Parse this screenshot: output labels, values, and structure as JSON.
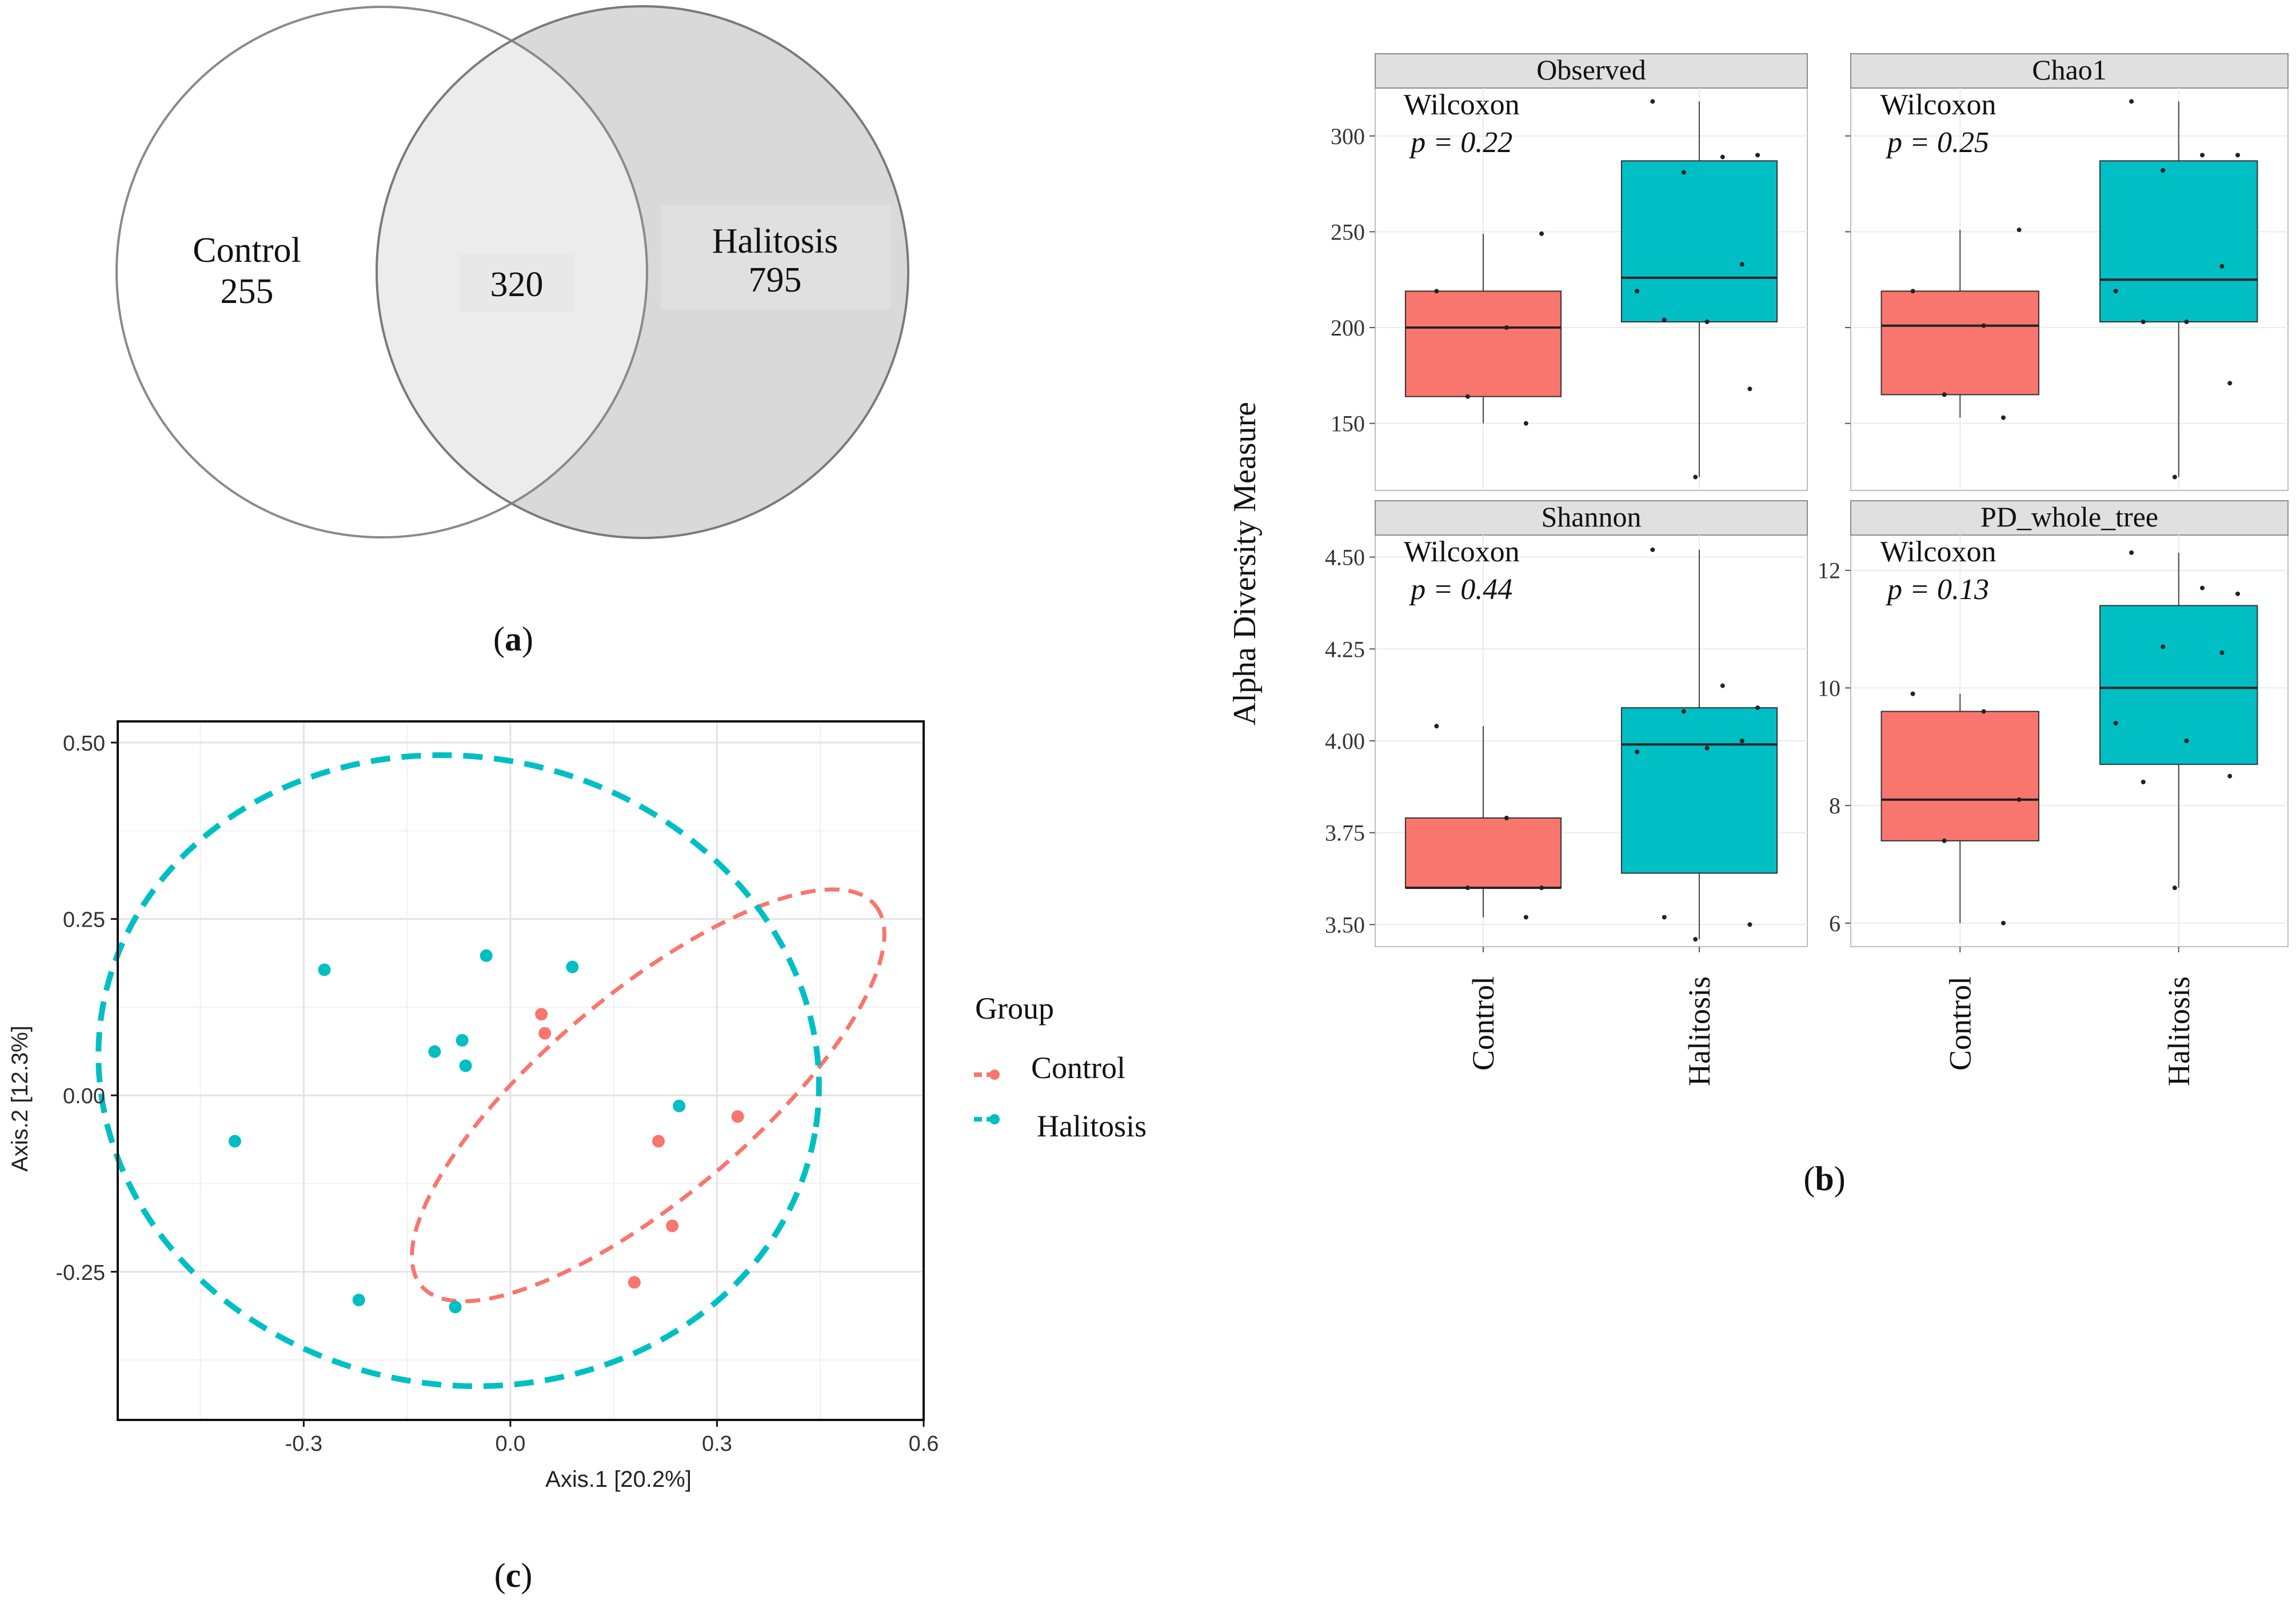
{
  "figure": {
    "panel_labels": [
      "(a)",
      "(b)",
      "(c)"
    ],
    "panel_letters": [
      "a",
      "b",
      "c"
    ]
  },
  "chart_data": [
    {
      "type": "venn",
      "panel": "a",
      "sets": [
        {
          "name": "Control",
          "unique": 255
        },
        {
          "name": "Halitosis",
          "unique": 795
        }
      ],
      "intersection": 320,
      "colors": {
        "control_fill": "#ffffff",
        "halitosis_fill": "#d9d9d9",
        "overlap_fill": "#ececec",
        "stroke": "#7f7f7f"
      }
    },
    {
      "type": "box",
      "panel": "b",
      "ylabel": "Alpha Diversity Measure",
      "groups": [
        "Control",
        "Halitosis"
      ],
      "colors": {
        "Control": "#f8766d",
        "Halitosis": "#00bfc4"
      },
      "facets": [
        {
          "name": "Observed",
          "ylim": [
            115,
            325
          ],
          "yticks": [
            150,
            200,
            250,
            300
          ],
          "test": "Wilcoxon",
          "p_label": "p = 0.22",
          "boxes": {
            "Control": {
              "min": 150,
              "q1": 164,
              "median": 200,
              "q3": 219,
              "max": 249
            },
            "Halitosis": {
              "min": 122,
              "q1": 203,
              "median": 226,
              "q3": 287,
              "max": 318
            }
          },
          "points": {
            "Control": [
              219,
              200,
              249,
              164,
              150
            ],
            "Halitosis": [
              318,
              289,
              290,
              281,
              233,
              219,
              203,
              204,
              168,
              122
            ]
          }
        },
        {
          "name": "Chao1",
          "ylim": [
            115,
            325
          ],
          "yticks": [
            150,
            200,
            250,
            300
          ],
          "test": "Wilcoxon",
          "p_label": "p = 0.25",
          "boxes": {
            "Control": {
              "min": 153,
              "q1": 165,
              "median": 201,
              "q3": 219,
              "max": 251
            },
            "Halitosis": {
              "min": 122,
              "q1": 203,
              "median": 225,
              "q3": 287,
              "max": 318
            }
          },
          "points": {
            "Control": [
              219,
              201,
              251,
              165,
              153
            ],
            "Halitosis": [
              318,
              290,
              290,
              282,
              232,
              219,
              203,
              203,
              171,
              122
            ]
          }
        },
        {
          "name": "Shannon",
          "ylim": [
            3.44,
            4.56
          ],
          "yticks": [
            3.5,
            3.75,
            4.0,
            4.25,
            4.5
          ],
          "test": "Wilcoxon",
          "p_label": "p = 0.44",
          "boxes": {
            "Control": {
              "min": 3.52,
              "q1": 3.6,
              "median": 3.6,
              "q3": 3.79,
              "max": 4.04
            },
            "Halitosis": {
              "min": 3.46,
              "q1": 3.64,
              "median": 3.99,
              "q3": 4.09,
              "max": 4.52
            }
          },
          "points": {
            "Control": [
              4.04,
              3.79,
              3.6,
              3.6,
              3.52
            ],
            "Halitosis": [
              4.52,
              4.15,
              4.09,
              4.08,
              4.0,
              3.97,
              3.98,
              3.52,
              3.5,
              3.46
            ]
          }
        },
        {
          "name": "PD_whole_tree",
          "ylim": [
            5.6,
            12.6
          ],
          "yticks": [
            6,
            8,
            10,
            12
          ],
          "test": "Wilcoxon",
          "p_label": "p = 0.13",
          "boxes": {
            "Control": {
              "min": 6.0,
              "q1": 7.4,
              "median": 8.1,
              "q3": 9.6,
              "max": 9.9
            },
            "Halitosis": {
              "min": 6.6,
              "q1": 8.7,
              "median": 10.0,
              "q3": 11.4,
              "max": 12.3
            }
          },
          "points": {
            "Control": [
              9.9,
              9.6,
              8.1,
              7.4,
              6.0
            ],
            "Halitosis": [
              12.3,
              11.7,
              11.6,
              10.7,
              10.6,
              9.4,
              9.1,
              8.4,
              8.5,
              6.6
            ]
          }
        }
      ]
    },
    {
      "type": "scatter",
      "panel": "c",
      "xlabel": "Axis.1   [20.2%]",
      "ylabel": "Axis.2   [12.3%]",
      "xlim": [
        -0.57,
        0.6
      ],
      "ylim": [
        -0.46,
        0.53
      ],
      "xticks": [
        -0.3,
        0.0,
        0.3,
        0.6
      ],
      "xtick_labels": [
        "-0.3",
        "0.0",
        "0.3",
        "0.6"
      ],
      "yticks": [
        -0.25,
        0.0,
        0.25,
        0.5
      ],
      "ytick_labels": [
        "-0.25",
        "0.00",
        "0.25",
        "0.50"
      ],
      "legend": {
        "title": "Group",
        "entries": [
          "Control",
          "Halitosis"
        ],
        "position": "right"
      },
      "series": [
        {
          "name": "Control",
          "color": "#f8766d",
          "points": [
            [
              0.045,
              0.115
            ],
            [
              0.05,
              0.088
            ],
            [
              0.215,
              -0.065
            ],
            [
              0.33,
              -0.03
            ],
            [
              0.235,
              -0.185
            ],
            [
              0.18,
              -0.265
            ]
          ],
          "ellipse": {
            "center": [
              0.2,
              0.0
            ],
            "radii": [
              0.43,
              0.145
            ],
            "angle_deg": -40
          }
        },
        {
          "name": "Halitosis",
          "color": "#00bfc4",
          "points": [
            [
              -0.4,
              -0.065
            ],
            [
              -0.27,
              0.178
            ],
            [
              -0.11,
              0.062
            ],
            [
              -0.07,
              0.078
            ],
            [
              -0.065,
              0.042
            ],
            [
              -0.035,
              0.198
            ],
            [
              0.09,
              0.182
            ],
            [
              0.245,
              -0.015
            ],
            [
              -0.22,
              -0.29
            ],
            [
              -0.08,
              -0.3
            ]
          ],
          "ellipse": {
            "center": [
              -0.075,
              0.035
            ],
            "radii": [
              0.525,
              0.445
            ],
            "angle_deg": 10
          }
        }
      ]
    }
  ]
}
